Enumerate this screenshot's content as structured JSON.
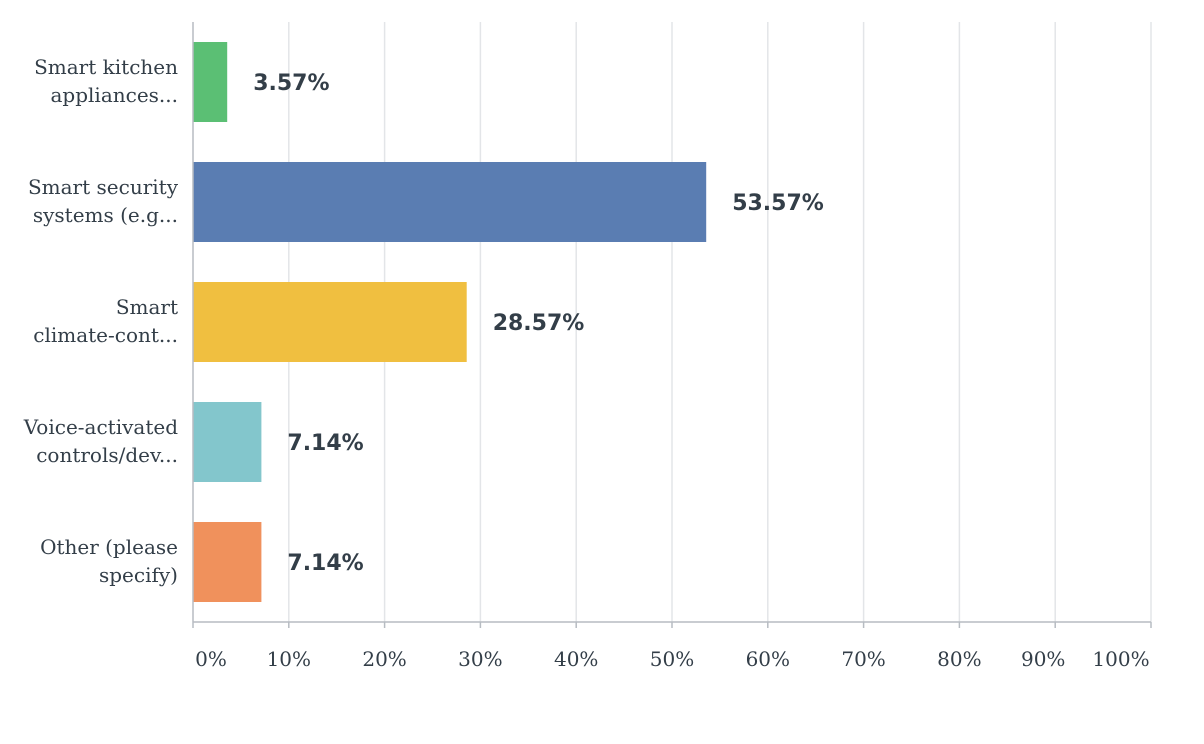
{
  "chart_data": {
    "type": "bar",
    "orientation": "horizontal",
    "categories": [
      [
        "Smart kitchen",
        "appliances..."
      ],
      [
        "Smart security",
        "systems (e.g..."
      ],
      [
        "Smart",
        "climate-cont..."
      ],
      [
        "Voice-activated",
        "controls/dev..."
      ],
      [
        "Other (please",
        "specify)"
      ]
    ],
    "values": [
      3.57,
      53.57,
      28.57,
      7.14,
      7.14
    ],
    "value_labels": [
      "3.57%",
      "53.57%",
      "28.57%",
      "7.14%",
      "7.14%"
    ],
    "colors": [
      "#5bbf74",
      "#5a7db2",
      "#f0bf40",
      "#83c6cc",
      "#f0915c"
    ],
    "x_ticks": [
      0,
      10,
      20,
      30,
      40,
      50,
      60,
      70,
      80,
      90,
      100
    ],
    "x_tick_labels": [
      "0%",
      "10%",
      "20%",
      "30%",
      "40%",
      "50%",
      "60%",
      "70%",
      "80%",
      "90%",
      "100%"
    ],
    "xlim": [
      0,
      100
    ],
    "grid": true,
    "title": "",
    "xlabel": "",
    "ylabel": ""
  },
  "style": {
    "grid_color": "#e3e5e8",
    "axis_color": "#b7bcc2",
    "text_color": "#333e48"
  }
}
